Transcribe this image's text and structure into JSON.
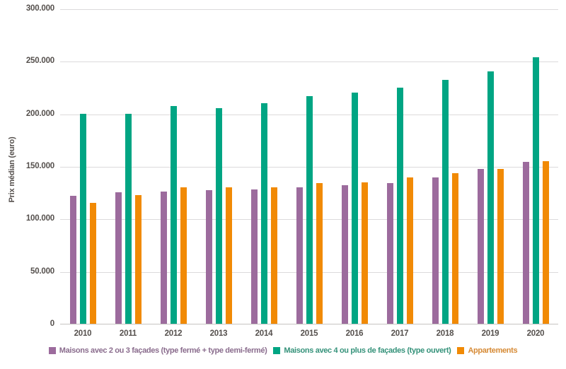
{
  "chart_data": {
    "type": "bar",
    "title": "",
    "xlabel": "",
    "ylabel": "Prix médian (euro)",
    "ylim": [
      0,
      300000
    ],
    "ytick_step": 50000,
    "y_tick_labels_top_down": [
      "300.000",
      "250.000",
      "200.000",
      "150.000",
      "100.000",
      "50.000",
      "0"
    ],
    "grid": "horizontal",
    "legend_position": "bottom-center",
    "background_color": "#ffffff",
    "gridline_color": "#dcdadb",
    "axis_text_color": "#55504d",
    "categories": [
      "2010",
      "2011",
      "2012",
      "2013",
      "2014",
      "2015",
      "2016",
      "2017",
      "2018",
      "2019",
      "2020"
    ],
    "series": [
      {
        "name": "Maisons avec 2 ou 3 façades (type fermé + type demi-fermé)",
        "color": "#9c6b9d",
        "legend_text_color": "#8a6c8d",
        "values": [
          122000,
          125000,
          126000,
          127000,
          127500,
          129500,
          132000,
          134000,
          139500,
          147500,
          154000
        ]
      },
      {
        "name": "Maisons avec 4 ou plus de façades (type ouvert)",
        "color": "#00a583",
        "legend_text_color": "#35927a",
        "values": [
          200000,
          200000,
          207000,
          205000,
          210000,
          216500,
          220000,
          224500,
          232000,
          240000,
          253500
        ]
      },
      {
        "name": "Appartements",
        "color": "#f18a05",
        "legend_text_color": "#d68a35",
        "values": [
          115000,
          122500,
          129500,
          129500,
          130000,
          134000,
          134500,
          139000,
          143500,
          147500,
          155000
        ]
      }
    ]
  }
}
